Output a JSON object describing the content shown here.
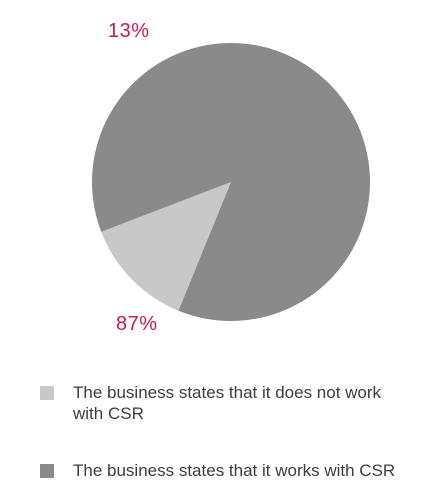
{
  "chart_data": {
    "type": "pie",
    "title": "",
    "slices": [
      {
        "label": "The business states that it does not work with CSR",
        "value": 13,
        "value_label": "13%",
        "color": "#c8c8c8"
      },
      {
        "label": "The business states that it works with CSR",
        "value": 87,
        "value_label": "87%",
        "color": "#8a8a8a"
      }
    ],
    "value_label_color": "#c8185a",
    "legend_placement": "bottom"
  }
}
